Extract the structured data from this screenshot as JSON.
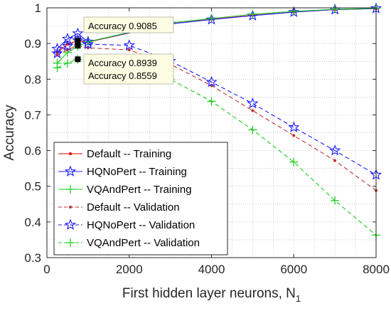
{
  "chart_data": {
    "type": "line",
    "xlabel_main": "First hidden layer neurons, N",
    "xlabel_sub": "1",
    "ylabel": "Accuracy",
    "xlim": [
      0,
      8000
    ],
    "ylim": [
      0.3,
      1.0
    ],
    "xticks": [
      "0",
      "2000",
      "4000",
      "6000",
      "8000"
    ],
    "yticks": [
      "0.3",
      "0.4",
      "0.5",
      "0.6",
      "0.7",
      "0.8",
      "0.9",
      "1"
    ],
    "grid": "dotted, major and minor",
    "legend_position": "lower-left",
    "series": [
      {
        "name": "Default  -- Training",
        "color": "#e00000",
        "dash": "solid",
        "marker": "dot",
        "x": [
          250,
          500,
          750,
          1000,
          3000,
          4000,
          5000,
          6000,
          7000,
          8000
        ],
        "y": [
          0.875,
          0.898,
          0.908,
          0.904,
          0.955,
          0.968,
          0.979,
          0.988,
          0.995,
          0.998
        ]
      },
      {
        "name": "HQNoPert -- Training",
        "color": "#1a1aff",
        "dash": "solid",
        "marker": "star",
        "x": [
          250,
          500,
          750,
          1000,
          3000,
          4000,
          5000,
          6000,
          7000,
          8000
        ],
        "y": [
          0.885,
          0.913,
          0.928,
          0.905,
          0.955,
          0.967,
          0.978,
          0.988,
          0.995,
          0.998
        ]
      },
      {
        "name": "VQAndPert -- Training",
        "color": "#1acc1a",
        "dash": "solid",
        "marker": "plus",
        "x": [
          250,
          500,
          750,
          1000,
          3000,
          4000,
          5000,
          6000,
          7000,
          8000
        ],
        "y": [
          0.845,
          0.875,
          0.892,
          0.905,
          0.958,
          0.97,
          0.982,
          0.99,
          0.996,
          0.999
        ]
      },
      {
        "name": "Default -- Validation",
        "color": "#c03030",
        "dash": "dashed",
        "marker": "dot",
        "x": [
          250,
          500,
          750,
          1000,
          2000,
          3000,
          4000,
          5000,
          6000,
          7000,
          8000
        ],
        "y": [
          0.868,
          0.882,
          0.8939,
          0.888,
          0.882,
          0.842,
          0.782,
          0.712,
          0.642,
          0.572,
          0.488
        ]
      },
      {
        "name": "HQNoPert -- Validation",
        "color": "#1a1aff",
        "dash": "dashed",
        "marker": "star",
        "x": [
          250,
          500,
          750,
          1000,
          2000,
          3000,
          4000,
          5000,
          6000,
          7000,
          8000
        ],
        "y": [
          0.872,
          0.893,
          0.9085,
          0.898,
          0.895,
          0.851,
          0.792,
          0.732,
          0.665,
          0.6,
          0.532
        ]
      },
      {
        "name": "VQAndPert -- Validation",
        "color": "#1acc1a",
        "dash": "dashed",
        "marker": "plus",
        "x": [
          250,
          500,
          750,
          1000,
          2000,
          3000,
          4000,
          5000,
          6000,
          7000,
          8000
        ],
        "y": [
          0.832,
          0.845,
          0.8559,
          0.858,
          0.855,
          0.8,
          0.738,
          0.658,
          0.568,
          0.46,
          0.363
        ]
      }
    ],
    "datatips": [
      {
        "label": "Accuracy",
        "value": "0.9085",
        "x": 750,
        "y": 0.9085,
        "series": "HQNoPert -- Validation"
      },
      {
        "label": "Accuracy",
        "value": "0.8939",
        "x": 750,
        "y": 0.8939,
        "series": "Default -- Validation"
      },
      {
        "label": "Accuracy",
        "value": "0.8559",
        "x": 750,
        "y": 0.8559,
        "series": "VQAndPert -- Validation"
      }
    ]
  }
}
